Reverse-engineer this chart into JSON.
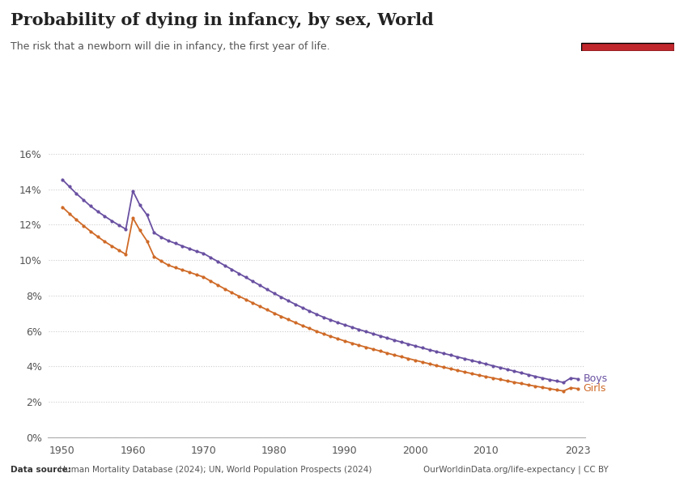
{
  "title": "Probability of dying in infancy, by sex, World",
  "subtitle": "The risk that a newborn will die in infancy, the first year of life.",
  "datasource_bold": "Data source:",
  "datasource_rest": " Human Mortality Database (2024); UN, World Population Prospects (2024)",
  "url": "OurWorldinData.org/life-expectancy | CC BY",
  "boys_color": "#6950a1",
  "girls_color": "#CF6A27",
  "background_color": "#FFFFFF",
  "logo_bg": "#1a3055",
  "logo_red": "#C0272D",
  "years": [
    1950,
    1951,
    1952,
    1953,
    1954,
    1955,
    1956,
    1957,
    1958,
    1959,
    1960,
    1961,
    1962,
    1963,
    1964,
    1965,
    1966,
    1967,
    1968,
    1969,
    1970,
    1971,
    1972,
    1973,
    1974,
    1975,
    1976,
    1977,
    1978,
    1979,
    1980,
    1981,
    1982,
    1983,
    1984,
    1985,
    1986,
    1987,
    1988,
    1989,
    1990,
    1991,
    1992,
    1993,
    1994,
    1995,
    1996,
    1997,
    1998,
    1999,
    2000,
    2001,
    2002,
    2003,
    2004,
    2005,
    2006,
    2007,
    2008,
    2009,
    2010,
    2011,
    2012,
    2013,
    2014,
    2015,
    2016,
    2017,
    2018,
    2019,
    2020,
    2021,
    2022,
    2023
  ],
  "boys": [
    0.1455,
    0.1415,
    0.1375,
    0.134,
    0.1305,
    0.1275,
    0.1248,
    0.1222,
    0.1198,
    0.1175,
    0.139,
    0.131,
    0.1255,
    0.1155,
    0.113,
    0.111,
    0.1095,
    0.108,
    0.1065,
    0.105,
    0.1038,
    0.1015,
    0.0993,
    0.097,
    0.0948,
    0.0925,
    0.0903,
    0.088,
    0.0858,
    0.0835,
    0.0813,
    0.0792,
    0.0771,
    0.0751,
    0.0732,
    0.0713,
    0.0695,
    0.0678,
    0.0663,
    0.0648,
    0.0635,
    0.0622,
    0.0609,
    0.0597,
    0.0585,
    0.0573,
    0.0561,
    0.0549,
    0.0538,
    0.0527,
    0.0516,
    0.0505,
    0.0494,
    0.0484,
    0.0474,
    0.0464,
    0.0454,
    0.0444,
    0.0434,
    0.0424,
    0.0414,
    0.0404,
    0.0394,
    0.0384,
    0.0374,
    0.0364,
    0.0354,
    0.0344,
    0.0335,
    0.0326,
    0.0318,
    0.031,
    0.0335,
    0.033
  ],
  "girls": [
    0.13,
    0.1263,
    0.1228,
    0.1195,
    0.1163,
    0.1133,
    0.1105,
    0.108,
    0.1056,
    0.1033,
    0.1238,
    0.1168,
    0.1108,
    0.102,
    0.0995,
    0.0972,
    0.0958,
    0.0945,
    0.0932,
    0.0918,
    0.0905,
    0.0882,
    0.086,
    0.0838,
    0.0817,
    0.0797,
    0.0778,
    0.0758,
    0.0739,
    0.072,
    0.0701,
    0.0683,
    0.0665,
    0.0648,
    0.0631,
    0.0615,
    0.0599,
    0.0584,
    0.057,
    0.0557,
    0.0544,
    0.0532,
    0.052,
    0.0509,
    0.0498,
    0.0487,
    0.0476,
    0.0465,
    0.0455,
    0.0445,
    0.0435,
    0.0425,
    0.0415,
    0.0405,
    0.0396,
    0.0387,
    0.0378,
    0.0369,
    0.036,
    0.0351,
    0.0343,
    0.0335,
    0.0327,
    0.0319,
    0.0311,
    0.0304,
    0.0296,
    0.0289,
    0.0282,
    0.0275,
    0.0268,
    0.0262,
    0.028,
    0.0275
  ],
  "ylim": [
    0,
    0.17
  ],
  "yticks": [
    0,
    0.02,
    0.04,
    0.06,
    0.08,
    0.1,
    0.12,
    0.14,
    0.16
  ],
  "xticks": [
    1950,
    1960,
    1970,
    1980,
    1990,
    2000,
    2010,
    2023
  ]
}
